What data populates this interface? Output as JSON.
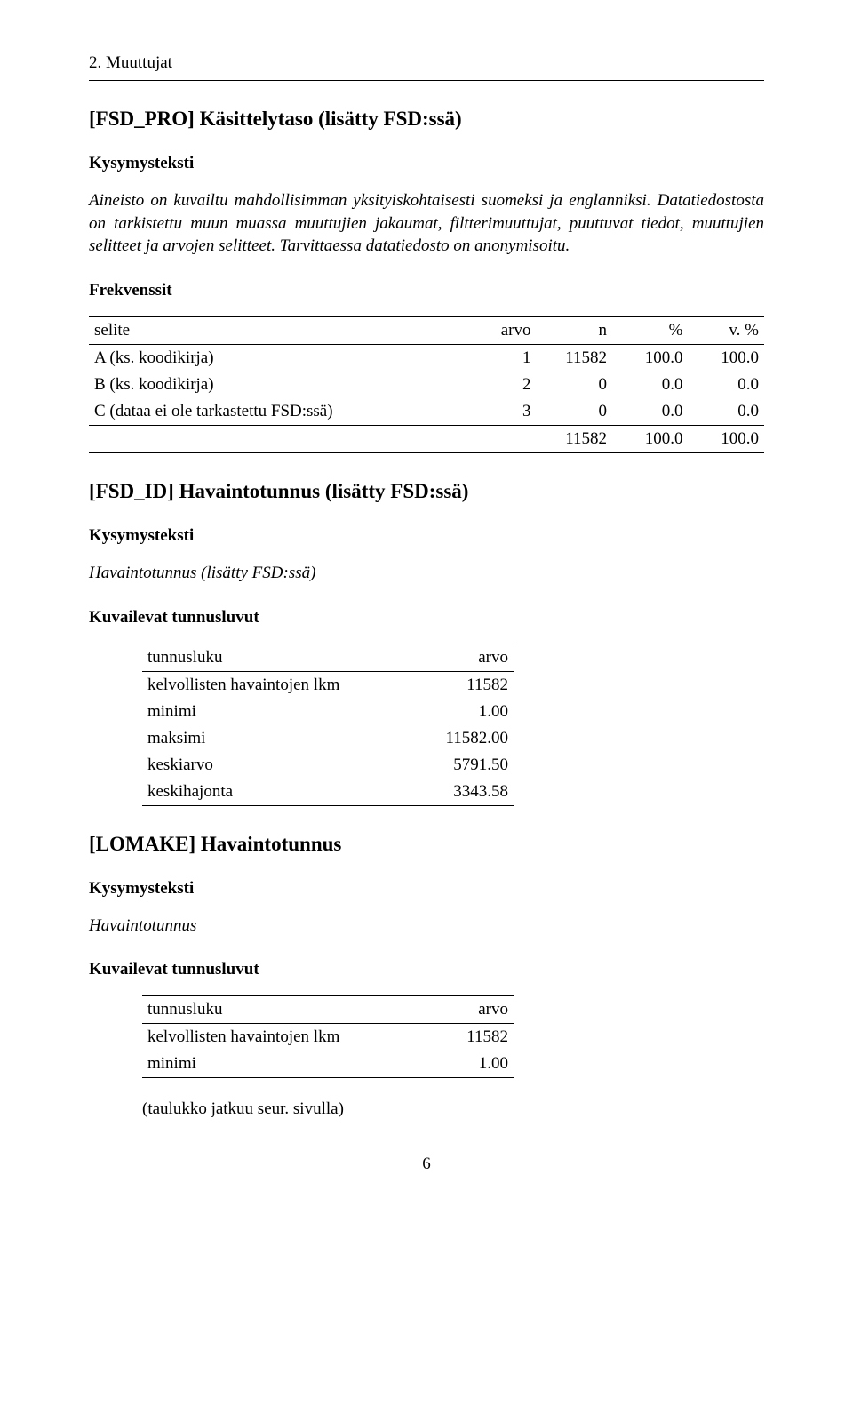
{
  "header": "2. Muuttujat",
  "labels": {
    "kysymysteksti": "Kysymysteksti",
    "frekvenssit": "Frekvenssit",
    "kuvailevat": "Kuvailevat tunnusluvut",
    "continues": "(taulukko jatkuu seur. sivulla)",
    "pageNumber": "6"
  },
  "freq_headers": {
    "selite": "selite",
    "arvo": "arvo",
    "n": "n",
    "pct": "%",
    "vpct": "v. %"
  },
  "desc_headers": {
    "tunnusluku": "tunnusluku",
    "arvo": "arvo"
  },
  "sections": {
    "fsd_pro": {
      "title": "[FSD_PRO] Käsittelytaso (lisätty FSD:ssä)",
      "question": "Aineisto on kuvailtu mahdollisimman yksityiskohtaisesti suomeksi ja englanniksi. Datatiedostosta on tarkistettu muun muassa muuttujien jakaumat, filtterimuuttujat, puuttuvat tiedot, muuttujien selitteet ja arvojen selitteet. Tarvittaessa datatiedosto on anonymisoitu.",
      "rows": [
        {
          "label": "A (ks. koodikirja)",
          "arvo": "1",
          "n": "11582",
          "pct": "100.0",
          "vpct": "100.0"
        },
        {
          "label": "B (ks. koodikirja)",
          "arvo": "2",
          "n": "0",
          "pct": "0.0",
          "vpct": "0.0"
        },
        {
          "label": "C (dataa ei ole tarkastettu FSD:ssä)",
          "arvo": "3",
          "n": "0",
          "pct": "0.0",
          "vpct": "0.0"
        }
      ],
      "total": {
        "n": "11582",
        "pct": "100.0",
        "vpct": "100.0"
      }
    },
    "fsd_id": {
      "title": "[FSD_ID] Havaintotunnus (lisätty FSD:ssä)",
      "question": "Havaintotunnus (lisätty FSD:ssä)",
      "rows": [
        {
          "label": "kelvollisten havaintojen lkm",
          "value": "11582"
        },
        {
          "label": "minimi",
          "value": "1.00"
        },
        {
          "label": "maksimi",
          "value": "11582.00"
        },
        {
          "label": "keskiarvo",
          "value": "5791.50"
        },
        {
          "label": "keskihajonta",
          "value": "3343.58"
        }
      ]
    },
    "lomake": {
      "title": "[LOMAKE] Havaintotunnus",
      "question": "Havaintotunnus",
      "rows": [
        {
          "label": "kelvollisten havaintojen lkm",
          "value": "11582"
        },
        {
          "label": "minimi",
          "value": "1.00"
        }
      ]
    }
  }
}
